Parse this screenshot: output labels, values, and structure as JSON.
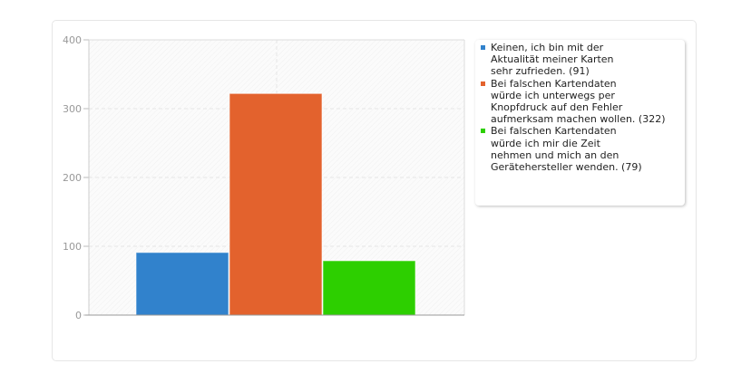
{
  "chart_data": {
    "type": "bar",
    "categories": [
      "Keinen, ich bin mit der\nAktualität meiner Karten\nsehr zufrieden. (91)",
      "Bei falschen Kartendaten\nwürde ich unterwegs per\nKnopfdruck auf den Fehler\naufmerksam machen wollen. (322)",
      "Bei falschen Kartendaten\nwürde ich mir die Zeit\nnehmen und mich an den\nGerätehersteller wenden. (79)"
    ],
    "values": [
      91,
      322,
      79
    ],
    "colors": [
      "#3182cc",
      "#e3622d",
      "#2dcf00"
    ],
    "ylim": [
      0,
      400
    ],
    "yticks": [
      "0",
      "100",
      "200",
      "300",
      "400"
    ],
    "grid": true,
    "legend_placement": "right",
    "title": "",
    "xlabel": "",
    "ylabel": ""
  }
}
